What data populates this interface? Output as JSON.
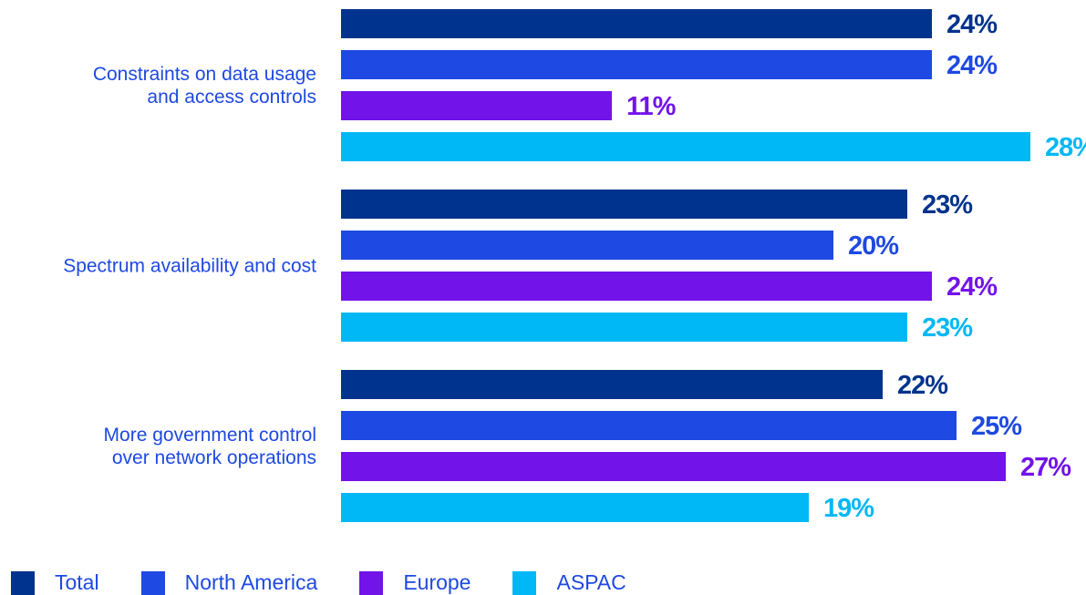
{
  "chart_data": {
    "type": "bar",
    "orientation": "horizontal",
    "categories": [
      [
        "Constraints on data usage",
        "and access controls"
      ],
      [
        "Spectrum availability and cost"
      ],
      [
        "More government control",
        "over network operations"
      ]
    ],
    "series": [
      {
        "name": "Total",
        "color": "#00338d",
        "values": [
          24,
          23,
          22
        ]
      },
      {
        "name": "North America",
        "color": "#1e49e2",
        "values": [
          24,
          20,
          25
        ]
      },
      {
        "name": "Europe",
        "color": "#7213ea",
        "values": [
          11,
          24,
          27
        ]
      },
      {
        "name": "ASPAC",
        "color": "#00b8f5",
        "values": [
          28,
          23,
          19
        ]
      }
    ],
    "value_suffix": "%",
    "legend_position": "bottom-left",
    "grid": false
  },
  "colors": {
    "label_text": "#1e49e2"
  }
}
